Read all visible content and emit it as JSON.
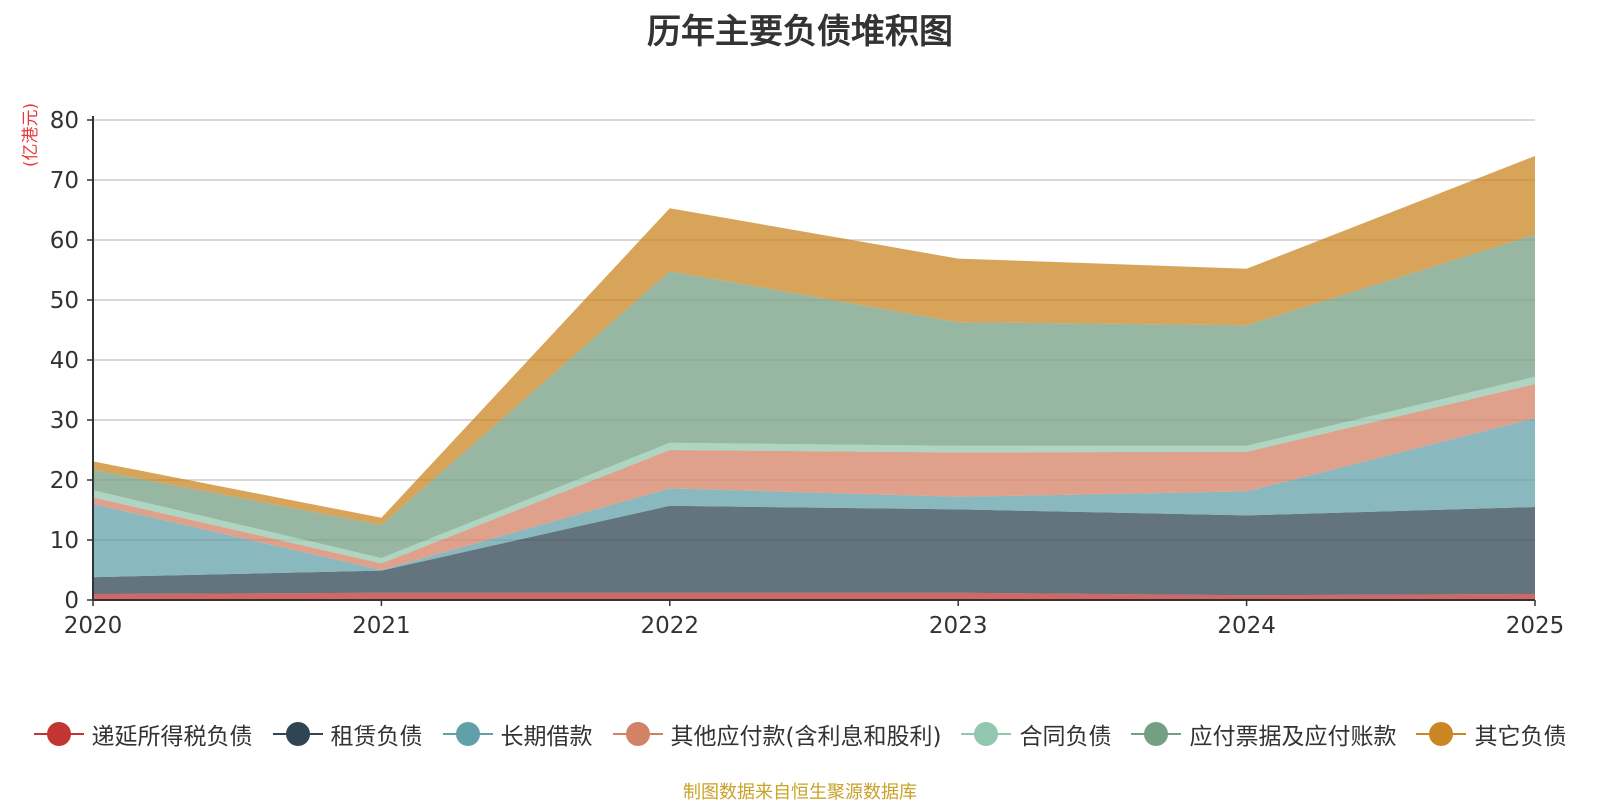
{
  "chart_data": {
    "type": "area",
    "stacked": true,
    "title": "历年主要负债堆积图",
    "ylabel": "(亿港元)",
    "ylabel_color": "#e8383d",
    "xlabel": "",
    "x": [
      "2020",
      "2021",
      "2022",
      "2023",
      "2024",
      "2025"
    ],
    "yticks": [
      "0",
      "10",
      "20",
      "30",
      "40",
      "50",
      "60",
      "70",
      "80"
    ],
    "ylim": [
      0,
      80
    ],
    "grid": true,
    "series": [
      {
        "name": "递延所得税负债",
        "color": "#c23531",
        "values": [
          1.0,
          1.2,
          1.2,
          1.2,
          0.8,
          1.0
        ]
      },
      {
        "name": "租赁负债",
        "color": "#2f4554",
        "values": [
          2.8,
          3.7,
          14.5,
          13.9,
          13.3,
          14.5
        ]
      },
      {
        "name": "长期借款",
        "color": "#61a0a8",
        "values": [
          12.2,
          0.1,
          2.9,
          2.1,
          4.0,
          14.8
        ]
      },
      {
        "name": "其他应付款(含利息和股利)",
        "color": "#d48265",
        "values": [
          1.1,
          1.1,
          6.4,
          7.4,
          6.6,
          5.7
        ]
      },
      {
        "name": "合同负债",
        "color": "#91c7ae",
        "values": [
          1.2,
          0.9,
          1.2,
          1.1,
          1.0,
          1.2
        ]
      },
      {
        "name": "应付票据及应付账款",
        "color": "#749f83",
        "values": [
          3.4,
          5.5,
          28.6,
          20.6,
          20.1,
          23.7
        ]
      },
      {
        "name": "其它负债",
        "color": "#ca8622",
        "values": [
          1.4,
          1.2,
          10.5,
          10.6,
          9.4,
          13.1
        ]
      }
    ],
    "legend_position": "bottom",
    "source_note": "制图数据来自恒生聚源数据库"
  }
}
